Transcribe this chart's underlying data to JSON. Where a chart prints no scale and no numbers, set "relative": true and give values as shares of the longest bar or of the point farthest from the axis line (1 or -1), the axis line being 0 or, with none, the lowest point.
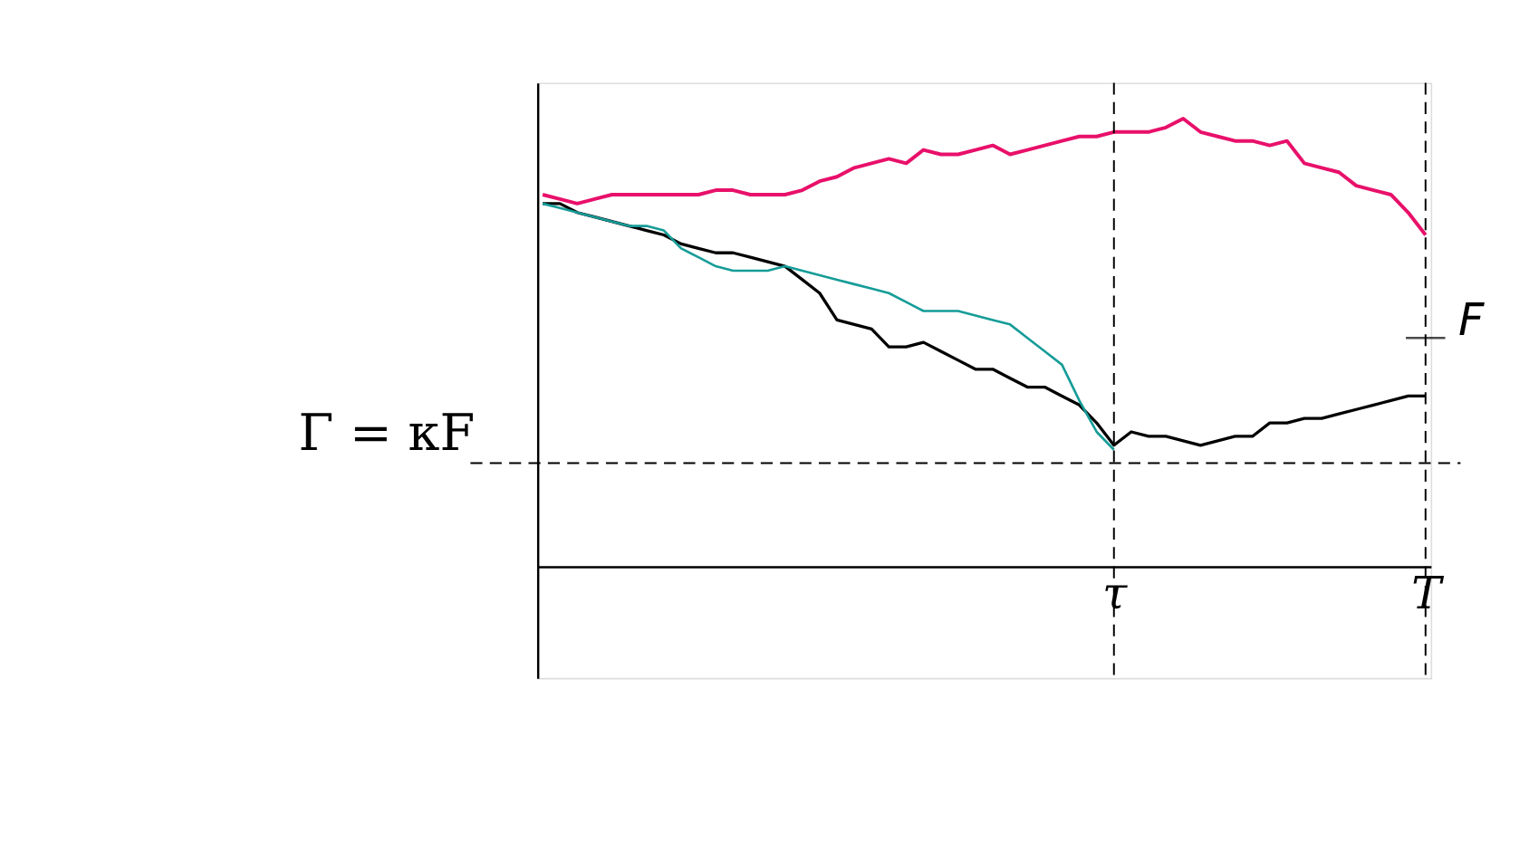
{
  "chart_data": {
    "type": "line",
    "relative": true,
    "grid": false,
    "marker": "none",
    "line_style": "solid",
    "categories": [
      null,
      null,
      null,
      null,
      null,
      null,
      null,
      null,
      null,
      null,
      null,
      null,
      null,
      null,
      null,
      null,
      null,
      null,
      null,
      null,
      null,
      null,
      null,
      null,
      null,
      null,
      null,
      null,
      null,
      null,
      null,
      null,
      null,
      "τ",
      null,
      null,
      null,
      null,
      null,
      null,
      null,
      null,
      null,
      null,
      null,
      null,
      null,
      null,
      null,
      null,
      null,
      "T"
    ],
    "series": [
      {
        "color": "#e8106a",
        "values": [
          0.83,
          0.82,
          0.81,
          0.82,
          0.83,
          0.83,
          0.83,
          0.83,
          0.83,
          0.83,
          0.84,
          0.84,
          0.83,
          0.83,
          0.83,
          0.84,
          0.86,
          0.87,
          0.89,
          0.9,
          0.91,
          0.9,
          0.93,
          0.92,
          0.92,
          0.93,
          0.94,
          0.92,
          0.93,
          0.94,
          0.95,
          0.96,
          0.96,
          0.97,
          0.97,
          0.97,
          0.98,
          1.0,
          0.97,
          0.96,
          0.95,
          0.95,
          0.94,
          0.95,
          0.9,
          0.89,
          0.88,
          0.85,
          0.84,
          0.83,
          0.79,
          0.74
        ]
      },
      {
        "color": "#000000",
        "values": [
          0.81,
          0.81,
          0.79,
          0.78,
          0.77,
          0.76,
          0.75,
          0.74,
          0.72,
          0.71,
          0.7,
          0.7,
          0.69,
          0.68,
          0.67,
          0.64,
          0.61,
          0.55,
          0.54,
          0.53,
          0.49,
          0.49,
          0.5,
          0.48,
          0.46,
          0.44,
          0.44,
          0.42,
          0.4,
          0.4,
          0.38,
          0.36,
          0.32,
          0.27,
          0.3,
          0.29,
          0.29,
          0.28,
          0.27,
          0.28,
          0.29,
          0.29,
          0.32,
          0.32,
          0.33,
          0.33,
          0.34,
          0.35,
          0.36,
          0.37,
          0.38,
          0.38
        ]
      },
      {
        "color": "#169c98",
        "values": [
          0.81,
          0.8,
          0.79,
          0.78,
          0.77,
          0.76,
          0.76,
          0.75,
          0.71,
          0.69,
          0.67,
          0.66,
          0.66,
          0.66,
          0.67,
          0.66,
          0.65,
          0.64,
          0.63,
          0.62,
          0.61,
          0.59,
          0.57,
          0.57,
          0.57,
          0.56,
          0.55,
          0.54,
          0.51,
          0.48,
          0.45,
          0.37,
          0.3,
          0.26,
          null,
          null,
          null,
          null,
          null,
          null,
          null,
          null,
          null,
          null,
          null,
          null,
          null,
          null,
          null,
          null,
          null,
          null
        ]
      }
    ],
    "ref_lines": [
      {
        "axis": "y",
        "value": 0.23,
        "label": "Γ = κF",
        "line_style": "dashed"
      },
      {
        "axis": "x",
        "value": "τ",
        "line_style": "dashed"
      },
      {
        "axis": "x",
        "value": "T",
        "line_style": "dashed"
      }
    ],
    "annotations": [
      {
        "text": "F",
        "x": "T",
        "y": 0.51
      }
    ]
  }
}
